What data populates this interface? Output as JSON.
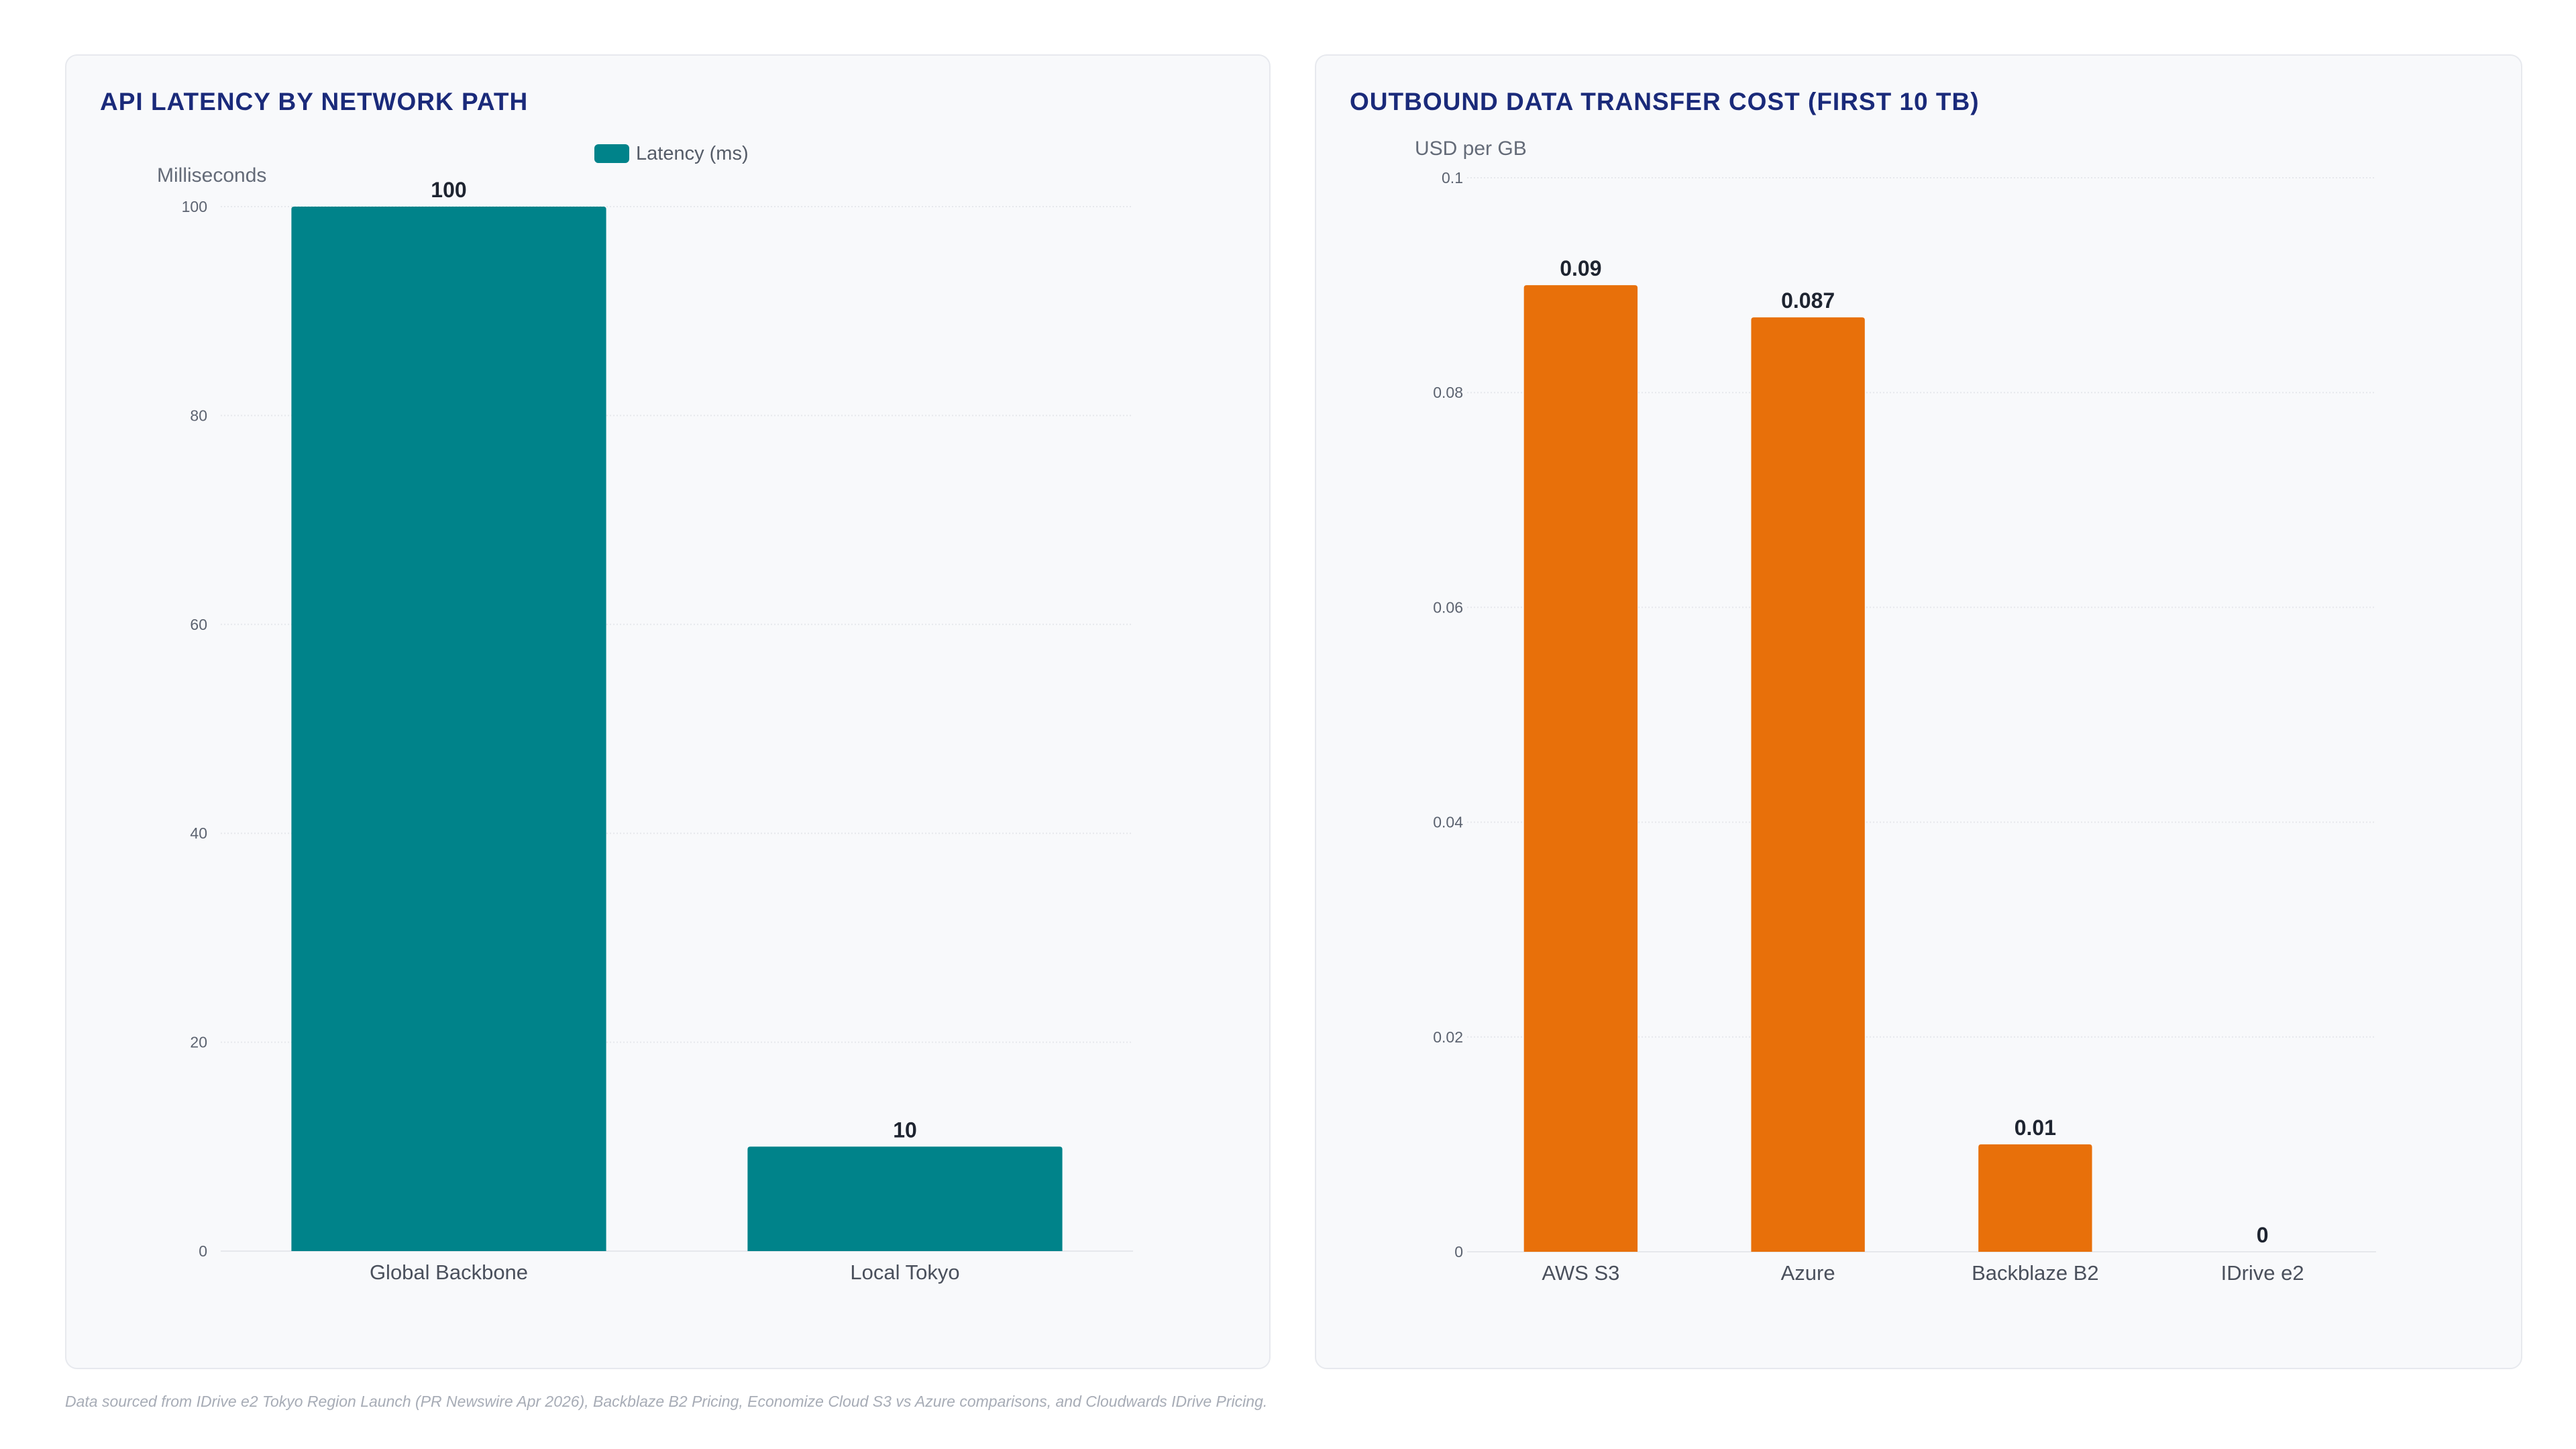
{
  "charts": {
    "latency": {
      "title": "API LATENCY BY NETWORK PATH",
      "color": "#00838a",
      "chart_data": {
        "type": "bar",
        "title": "API LATENCY BY NETWORK PATH",
        "categories": [
          "Global Backbone",
          "Local Tokyo"
        ],
        "series": [
          {
            "name": "Latency (ms)",
            "values": [
              100,
              10
            ]
          }
        ],
        "value_labels": [
          "100",
          "10"
        ],
        "ylabel": "Milliseconds",
        "xlabel": "",
        "ylim": [
          0,
          100
        ],
        "yticks": [
          0,
          20,
          40,
          60,
          80,
          100
        ],
        "ytick_labels": [
          "0",
          "20",
          "40",
          "60",
          "80",
          "100"
        ],
        "grid": true,
        "legend": "top-center"
      }
    },
    "cost": {
      "title": "OUTBOUND DATA TRANSFER COST (FIRST 10 TB)",
      "color": "#e8700a",
      "chart_data": {
        "type": "bar",
        "title": "OUTBOUND DATA TRANSFER COST (FIRST 10 TB)",
        "categories": [
          "AWS S3",
          "Azure",
          "Backblaze B2",
          "IDrive e2"
        ],
        "series": [
          {
            "values": [
              0.09,
              0.087,
              0.01,
              0
            ]
          }
        ],
        "value_labels": [
          "0.09",
          "0.087",
          "0.01",
          "0"
        ],
        "ylabel": "USD per GB",
        "xlabel": "",
        "ylim": [
          0,
          0.1
        ],
        "yticks": [
          0,
          0.02,
          0.04,
          0.06,
          0.08,
          0.1
        ],
        "ytick_labels": [
          "0",
          "0.02",
          "0.04",
          "0.06",
          "0.08",
          "0.1"
        ],
        "grid": true,
        "legend": "none"
      }
    }
  },
  "footnote": "Data sourced from IDrive e2 Tokyo Region Launch (PR Newswire Apr 2026), Backblaze B2 Pricing, Economize Cloud S3 vs Azure comparisons, and Cloudwards IDrive Pricing."
}
